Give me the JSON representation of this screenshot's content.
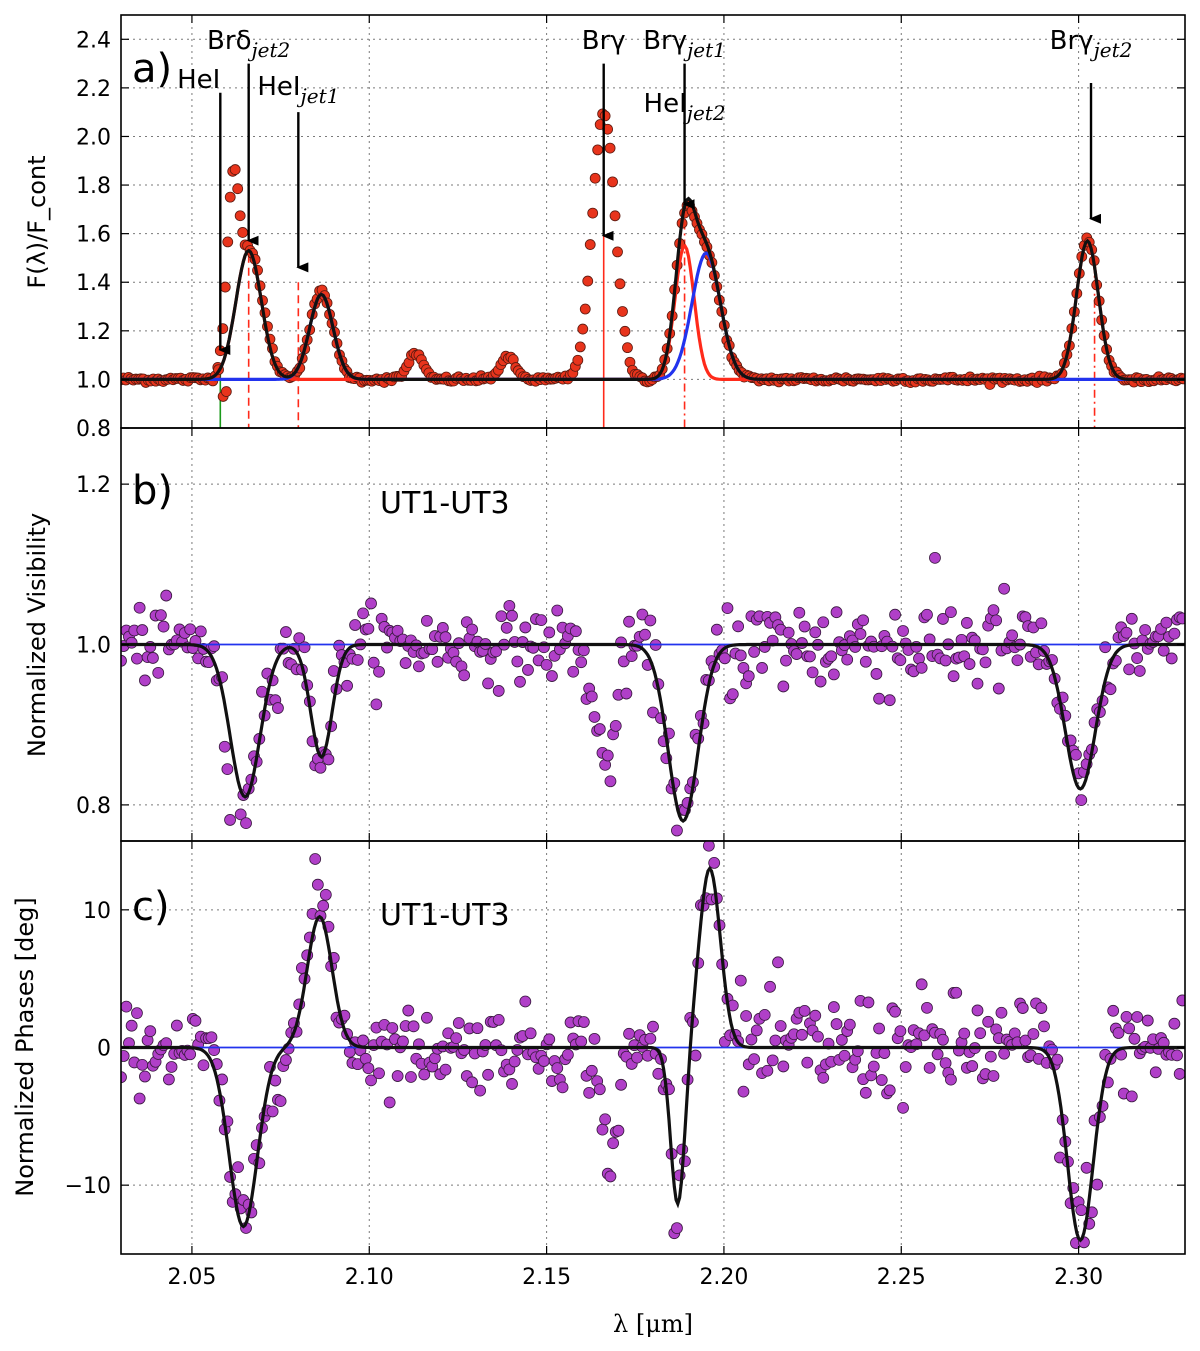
{
  "chart_data": [
    {
      "panel": "a)",
      "type": "scatter",
      "ylabel": "F(λ)/F_cont",
      "xlim": [
        2.03,
        2.33
      ],
      "ylim": [
        0.8,
        2.5
      ],
      "xticks": [
        2.05,
        2.1,
        2.15,
        2.2,
        2.25,
        2.3
      ],
      "yticks": [
        0.8,
        1.0,
        1.2,
        1.4,
        1.6,
        1.8,
        2.0,
        2.2,
        2.4
      ],
      "ytick_labels": [
        "0.8",
        "1.0",
        "1.2",
        "1.4",
        "1.6",
        "1.8",
        "2.0",
        "2.2",
        "2.4"
      ],
      "grid": true,
      "markers": {
        "color": "#e8341c",
        "edge": "#5a1a10"
      },
      "fits": [
        {
          "color": "#ff2a1a",
          "components": [
            {
              "center": 2.066,
              "amp": 0.53,
              "sigma": 0.0036
            },
            {
              "center": 2.1889,
              "amp": 0.55,
              "sigma": 0.0027
            },
            {
              "center": 2.3025,
              "amp": 0.57,
              "sigma": 0.0031
            }
          ]
        },
        {
          "color": "#2233ee",
          "components": [
            {
              "center": 2.0865,
              "amp": 0.35,
              "sigma": 0.0033
            },
            {
              "center": 2.195,
              "amp": 0.52,
              "sigma": 0.004
            }
          ]
        },
        {
          "color": "#111111",
          "components": [
            {
              "center": 2.066,
              "amp": 0.53,
              "sigma": 0.0036
            },
            {
              "center": 2.0865,
              "amp": 0.35,
              "sigma": 0.0033
            },
            {
              "center": 2.1889,
              "amp": 0.55,
              "sigma": 0.0027
            },
            {
              "center": 2.195,
              "amp": 0.52,
              "sigma": 0.004
            },
            {
              "center": 2.3025,
              "amp": 0.57,
              "sigma": 0.0031
            }
          ]
        }
      ],
      "data_peaks": [
        {
          "center": 2.0615,
          "amp": 0.66,
          "sigma": 0.0017
        },
        {
          "center": 2.0665,
          "amp": 0.52,
          "sigma": 0.0036
        },
        {
          "center": 2.0865,
          "amp": 0.36,
          "sigma": 0.0032
        },
        {
          "center": 2.113,
          "amp": 0.11,
          "sigma": 0.002
        },
        {
          "center": 2.139,
          "amp": 0.09,
          "sigma": 0.0022
        },
        {
          "center": 2.1661,
          "amp": 1.1,
          "sigma": 0.0032
        },
        {
          "center": 2.1889,
          "amp": 0.53,
          "sigma": 0.0028
        },
        {
          "center": 2.195,
          "amp": 0.5,
          "sigma": 0.004
        },
        {
          "center": 2.3025,
          "amp": 0.57,
          "sigma": 0.0031
        }
      ],
      "vlines": [
        {
          "x": 2.058,
          "color": "#1a9a1a",
          "style": "solid"
        },
        {
          "x": 2.066,
          "color": "#ff2a1a",
          "style": "dashed"
        },
        {
          "x": 2.08,
          "color": "#ff2a1a",
          "style": "dashed"
        },
        {
          "x": 2.1661,
          "color": "#ff2a1a",
          "style": "solid"
        },
        {
          "x": 2.1889,
          "color": "#ff2a1a",
          "style": "dashdot"
        },
        {
          "x": 2.3045,
          "color": "#ff2a1a",
          "style": "dashdot"
        }
      ],
      "annotations": [
        {
          "name": "HeI",
          "base": "HeI",
          "sub": "",
          "x": 2.058,
          "arrow_y0": 2.18,
          "arrow_y1": 1.08,
          "label_y": 2.2,
          "anchor": "end",
          "dx": 0.0
        },
        {
          "name": "Brδ_jet2",
          "base": "Brδ",
          "sub": "jet2",
          "x": 2.066,
          "arrow_y0": 2.3,
          "arrow_y1": 1.53,
          "label_y": 2.36,
          "anchor": "middle",
          "dx": 0.0
        },
        {
          "name": "HeI_jet1",
          "base": "HeI",
          "sub": "jet1",
          "x": 2.08,
          "arrow_y0": 2.1,
          "arrow_y1": 1.42,
          "label_y": 2.17,
          "anchor": "middle",
          "dx": 0.0
        },
        {
          "name": "Brγ",
          "base": "Brγ",
          "sub": "",
          "x": 2.1661,
          "arrow_y0": 2.3,
          "arrow_y1": 1.55,
          "label_y": 2.36,
          "anchor": "middle",
          "dx": 0.0
        },
        {
          "name": "Brγ_jet1",
          "base": "Brγ",
          "sub": "jet1",
          "x": 2.1889,
          "arrow_y0": 2.3,
          "arrow_y1": 1.68,
          "label_y": 2.36,
          "anchor": "middle",
          "dx": 0.0
        },
        {
          "name": "HeI_jet2",
          "base": "HeI",
          "sub": "jet2",
          "x": 2.1889,
          "arrow_y0": null,
          "arrow_y1": null,
          "label_y": 2.1,
          "anchor": "middle",
          "dx": 0.0
        },
        {
          "name": "Brγ_jet2",
          "base": "Brγ",
          "sub": "jet2",
          "x": 2.3035,
          "arrow_y0": 2.22,
          "arrow_y1": 1.62,
          "label_y": 2.36,
          "anchor": "middle",
          "dx": 0.0
        }
      ]
    },
    {
      "panel": "b)",
      "type": "scatter",
      "ylabel": "Normalized Visibility",
      "title": "UT1-UT3",
      "xlim": [
        2.03,
        2.33
      ],
      "ylim": [
        0.755,
        1.27
      ],
      "yticks": [
        0.8,
        1.0,
        1.2
      ],
      "ytick_labels": [
        "0.8",
        "1.0",
        "1.2"
      ],
      "grid": true,
      "markers": {
        "color": "#b03fc8",
        "edge": "#3a1a40"
      },
      "baseline": 1.0,
      "fit_components": [
        {
          "center": 2.065,
          "amp": -0.19,
          "sigma": 0.0042
        },
        {
          "center": 2.0865,
          "amp": -0.14,
          "sigma": 0.003
        },
        {
          "center": 2.1885,
          "amp": -0.22,
          "sigma": 0.0042
        },
        {
          "center": 2.3005,
          "amp": -0.18,
          "sigma": 0.0042
        }
      ],
      "data_components": [
        {
          "center": 2.062,
          "amp": -0.2,
          "sigma": 0.0022
        },
        {
          "center": 2.066,
          "amp": -0.13,
          "sigma": 0.004
        },
        {
          "center": 2.0865,
          "amp": -0.14,
          "sigma": 0.003
        },
        {
          "center": 2.1665,
          "amp": -0.15,
          "sigma": 0.003
        },
        {
          "center": 2.1885,
          "amp": -0.22,
          "sigma": 0.0042
        },
        {
          "center": 2.3005,
          "amp": -0.18,
          "sigma": 0.0042
        }
      ]
    },
    {
      "panel": "c)",
      "type": "scatter",
      "ylabel": "Normalized Phases [deg]",
      "xlabel": "λ [μm]",
      "title": "UT1-UT3",
      "xlim": [
        2.03,
        2.33
      ],
      "ylim": [
        -15,
        15
      ],
      "yticks": [
        -10,
        0,
        10
      ],
      "ytick_labels": [
        "−10",
        "0",
        "10"
      ],
      "xtick_labels": [
        "2.05",
        "2.10",
        "2.15",
        "2.20",
        "2.25",
        "2.30"
      ],
      "grid": true,
      "markers": {
        "color": "#b03fc8",
        "edge": "#3a1a40"
      },
      "baseline": 0,
      "fit_components": [
        {
          "center": 2.0645,
          "amp": -13.0,
          "sigma": 0.004
        },
        {
          "center": 2.086,
          "amp": 9.5,
          "sigma": 0.0035
        },
        {
          "center": 2.187,
          "amp": -11.5,
          "sigma": 0.002
        },
        {
          "center": 2.196,
          "amp": 13.0,
          "sigma": 0.003
        },
        {
          "center": 2.3005,
          "amp": -14.0,
          "sigma": 0.0036
        }
      ],
      "data_components": [
        {
          "center": 2.0645,
          "amp": -13.0,
          "sigma": 0.004
        },
        {
          "center": 2.086,
          "amp": 11.0,
          "sigma": 0.0035
        },
        {
          "center": 2.168,
          "amp": -7.5,
          "sigma": 0.0025
        },
        {
          "center": 2.187,
          "amp": -11.5,
          "sigma": 0.002
        },
        {
          "center": 2.196,
          "amp": 13.5,
          "sigma": 0.003
        },
        {
          "center": 2.3005,
          "amp": -14.0,
          "sigma": 0.0036
        }
      ]
    }
  ]
}
